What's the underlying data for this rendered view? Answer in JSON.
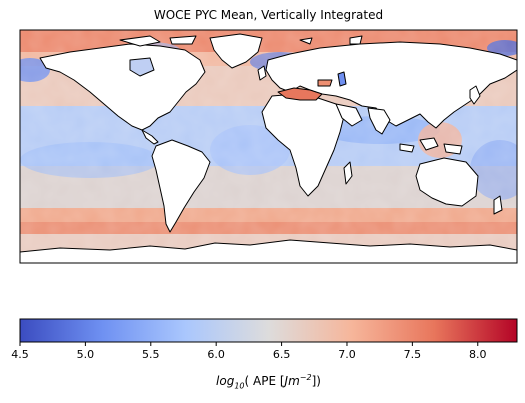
{
  "title": "WOCE PYC Mean, Vertically Integrated",
  "colorbar": {
    "label_prefix": "log",
    "label_sub": "10",
    "label_mid": "( APE [",
    "label_unit": "Jm",
    "label_sup": "−2",
    "label_suffix": "])",
    "vmin": 4.5,
    "vmax": 8.3,
    "ticks": [
      "4.5",
      "5.0",
      "5.5",
      "6.0",
      "6.5",
      "7.0",
      "7.5",
      "8.0"
    ],
    "colormap": "coolwarm",
    "colors": [
      "#3b4cc0",
      "#6f91f2",
      "#aac7fd",
      "#dddcdc",
      "#f6b69b",
      "#e8765c",
      "#b40426"
    ]
  },
  "map": {
    "projection": "plate-carree",
    "extent_lon": [
      -180,
      180
    ],
    "extent_lat": [
      -90,
      90
    ],
    "land_color": "#ffffff",
    "coastline_color": "#000000"
  }
}
